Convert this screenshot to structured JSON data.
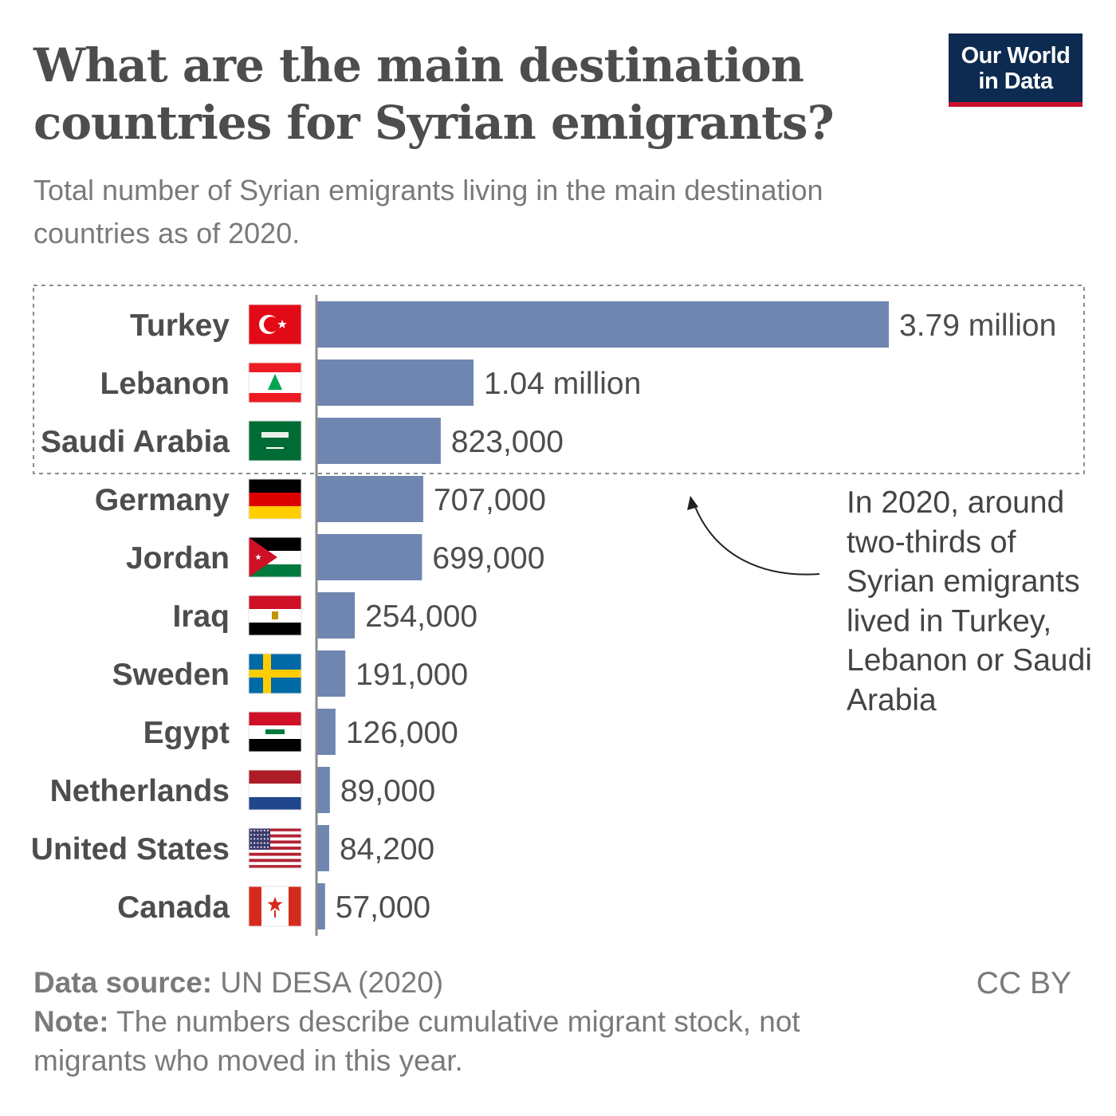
{
  "title": "What are the main destination countries for Syrian emigrants?",
  "subtitle": "Total number of Syrian emigrants living in the main destination countries as of 2020.",
  "logo": {
    "line1": "Our World",
    "line2": "in Data"
  },
  "annotation": "In 2020, around two-thirds of Syrian emigrants lived in Turkey, Lebanon or Saudi Arabia",
  "footer": {
    "source_label": "Data source:",
    "source_text": " UN DESA (2020)",
    "note_label": "Note:",
    "note_text": " The numbers describe cumulative migrant stock, not migrants who moved in this year."
  },
  "license": "CC BY",
  "colors": {
    "bar": "#6f86b0",
    "text": "#4d4d4d",
    "muted": "#7a7a7a",
    "logo_bg": "#0d2a50",
    "logo_accent": "#c8102e"
  },
  "chart_data": {
    "type": "bar",
    "orientation": "horizontal",
    "categories": [
      "Turkey",
      "Lebanon",
      "Saudi Arabia",
      "Germany",
      "Jordan",
      "Iraq",
      "Sweden",
      "Egypt",
      "Netherlands",
      "United States",
      "Canada"
    ],
    "values": [
      3790000,
      1040000,
      823000,
      707000,
      699000,
      254000,
      191000,
      126000,
      89000,
      84200,
      57000
    ],
    "value_labels": [
      "3.79 million",
      "1.04 million",
      "823,000",
      "707,000",
      "699,000",
      "254,000",
      "191,000",
      "126,000",
      "89,000",
      "84,200",
      "57,000"
    ],
    "flags": [
      "turkey-flag",
      "lebanon-flag",
      "saudi-arabia-flag",
      "germany-flag",
      "jordan-flag",
      "egypt-flag",
      "sweden-flag",
      "iraq-flag",
      "netherlands-flag",
      "united-states-flag",
      "canada-flag"
    ],
    "highlighted_categories": [
      "Turkey",
      "Lebanon",
      "Saudi Arabia"
    ],
    "xlim": [
      0,
      3790000
    ],
    "grid": false
  }
}
